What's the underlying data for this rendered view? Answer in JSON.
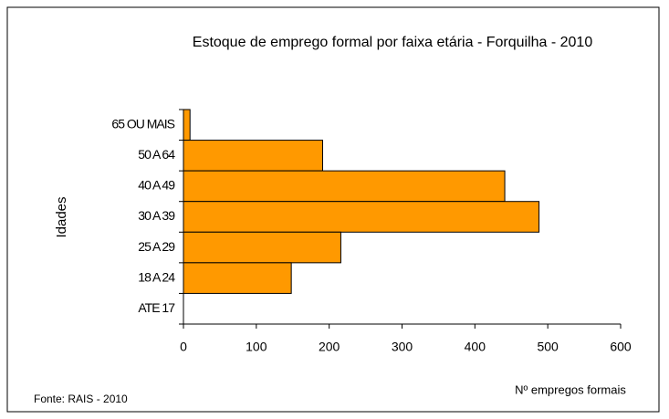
{
  "chart_data": {
    "type": "bar",
    "orientation": "horizontal",
    "title": "Estoque de emprego formal por faixa etária - Forquilha - 2010",
    "x_label": "Nº empregos formais",
    "y_label": "Idades",
    "source": "Fonte: RAIS - 2010",
    "categories": [
      "65 OU MAIS",
      "50 A 64",
      "40 A 49",
      "30 A 39",
      "25 A 29",
      "18 A 24",
      "ATE 17"
    ],
    "values": [
      9,
      191,
      441,
      488,
      216,
      148,
      0
    ],
    "color": "#ff9900",
    "xlim": [
      0,
      600
    ],
    "xticks": [
      0,
      100,
      200,
      300,
      400,
      500,
      600
    ],
    "grid": false
  }
}
